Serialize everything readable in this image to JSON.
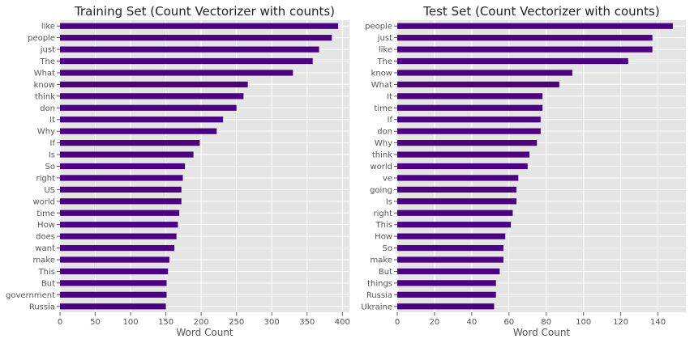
{
  "colors": {
    "bar": "#4b0082",
    "panel": "#e5e5e5",
    "grid": "#ffffff",
    "text": "#555555"
  },
  "chart_data": [
    {
      "type": "bar",
      "orientation": "horizontal",
      "title": "Training Set (Count Vectorizer with counts)",
      "xlabel": "Word Count",
      "ylabel": "",
      "xlim": [
        0,
        410
      ],
      "xticks": [
        0,
        50,
        100,
        150,
        200,
        250,
        300,
        350,
        400
      ],
      "grid": true,
      "categories": [
        "Russia",
        "government",
        "But",
        "This",
        "make",
        "want",
        "does",
        "How",
        "time",
        "world",
        "US",
        "right",
        "So",
        "Is",
        "If",
        "Why",
        "It",
        "don",
        "think",
        "know",
        "What",
        "The",
        "just",
        "people",
        "like"
      ],
      "values": [
        150,
        151,
        151,
        153,
        155,
        162,
        165,
        167,
        169,
        172,
        172,
        174,
        177,
        189,
        198,
        222,
        231,
        250,
        260,
        266,
        330,
        358,
        367,
        385,
        394
      ]
    },
    {
      "type": "bar",
      "orientation": "horizontal",
      "title": "Test Set (Count Vectorizer with counts)",
      "xlabel": "Word Count",
      "ylabel": "",
      "xlim": [
        0,
        155
      ],
      "xticks": [
        0,
        20,
        40,
        60,
        80,
        100,
        120,
        140
      ],
      "grid": true,
      "categories": [
        "Ukraine",
        "Russia",
        "things",
        "But",
        "make",
        "So",
        "How",
        "This",
        "right",
        "Is",
        "going",
        "ve",
        "world",
        "think",
        "Why",
        "don",
        "If",
        "time",
        "It",
        "What",
        "know",
        "The",
        "like",
        "just",
        "people"
      ],
      "values": [
        52,
        53,
        53,
        55,
        57,
        57,
        58,
        61,
        62,
        64,
        64,
        65,
        70,
        71,
        75,
        77,
        77,
        78,
        78,
        87,
        94,
        124,
        137,
        137,
        148
      ]
    }
  ]
}
